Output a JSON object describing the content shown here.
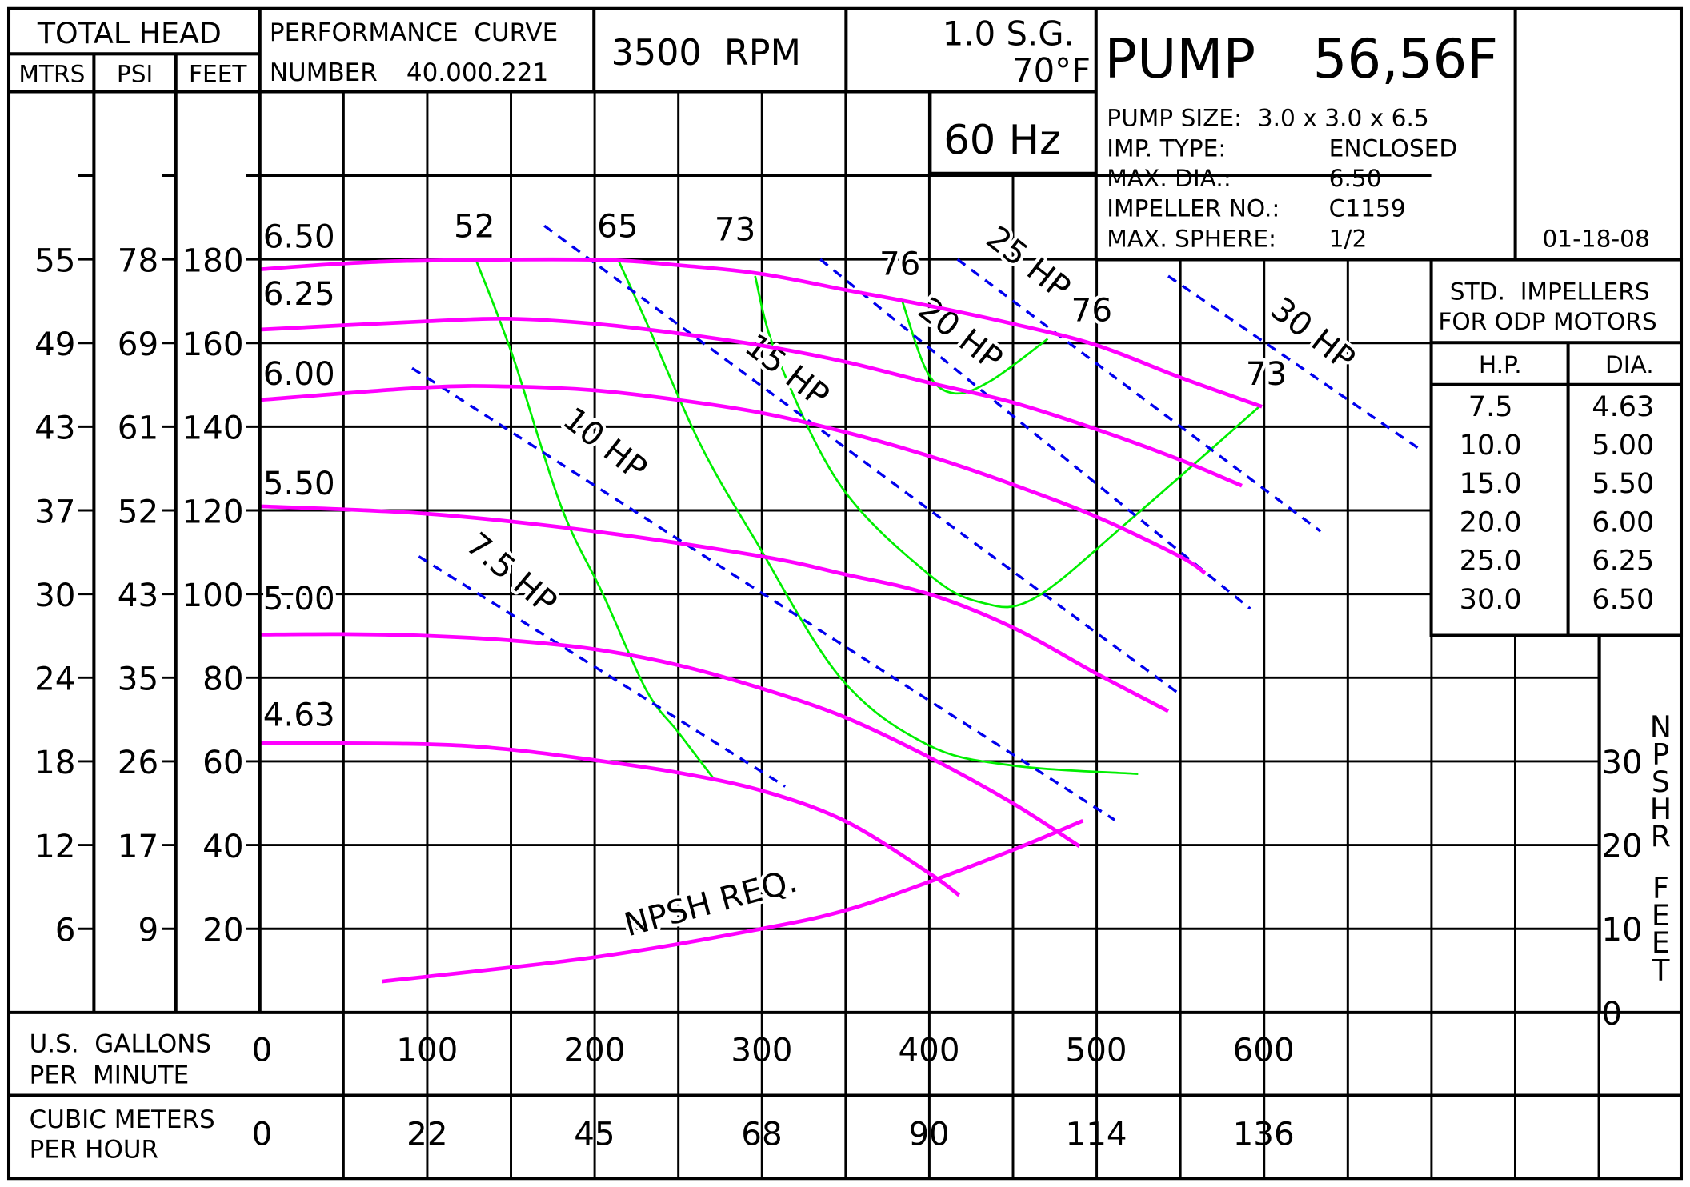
{
  "header": {
    "total_head": "TOTAL HEAD",
    "col_mtrs": "MTRS",
    "col_psi": "PSI",
    "col_feet": "FEET",
    "perf_curve": "PERFORMANCE  CURVE",
    "number_label": "NUMBER",
    "number_value": "40.000.221",
    "rpm": "3500  RPM",
    "sg": "1.0 S.G.",
    "temp": "70°F",
    "hz": "60 Hz",
    "pump_title": "PUMP",
    "pump_model": "56,56F",
    "specs": [
      {
        "label": "PUMP SIZE:",
        "value": "3.0 x 3.0 x 6.5"
      },
      {
        "label": "IMP. TYPE:",
        "value": "ENCLOSED"
      },
      {
        "label": "MAX. DIA.:",
        "value": "6.50"
      },
      {
        "label": "IMPELLER NO.:",
        "value": "C1159"
      },
      {
        "label": "MAX. SPHERE:",
        "value": "1/2"
      }
    ],
    "date": "01-18-08"
  },
  "std_impellers": {
    "title1": "STD.  IMPELLERS",
    "title2": "FOR ODP MOTORS",
    "hp_header": "H.P.",
    "dia_header": "DIA.",
    "rows": [
      {
        "hp": "7.5",
        "dia": "4.63"
      },
      {
        "hp": "10.0",
        "dia": "5.00"
      },
      {
        "hp": "15.0",
        "dia": "5.50"
      },
      {
        "hp": "20.0",
        "dia": "6.00"
      },
      {
        "hp": "25.0",
        "dia": "6.25"
      },
      {
        "hp": "30.0",
        "dia": "6.50"
      }
    ]
  },
  "colors": {
    "head_curve": "#ff00ff",
    "efficiency": "#00ee00",
    "hp_line": "#0000ee",
    "npsh": "#ff00ff"
  },
  "chart_data": {
    "type": "line",
    "grid": true,
    "xlabel": "U.S.  GALLONS PER  MINUTE",
    "x2label": "CUBIC METERS PER HOUR",
    "xlim": [
      0,
      800
    ],
    "xticks": [
      "0",
      "100",
      "200",
      "300",
      "400",
      "500",
      "600"
    ],
    "x2ticks": [
      "0",
      "22",
      "45",
      "68",
      "90",
      "114",
      "136"
    ],
    "ylim_feet": [
      0,
      200
    ],
    "feet_ticks": [
      "180",
      "160",
      "140",
      "120",
      "100",
      "80",
      "60",
      "40",
      "20"
    ],
    "psi_ticks": [
      "78",
      "69",
      "61",
      "52",
      "43",
      "35",
      "26",
      "17",
      "9"
    ],
    "mtrs_ticks": [
      "55",
      "49",
      "43",
      "37",
      "30",
      "24",
      "18",
      "12",
      "6"
    ],
    "npsh_axis_label": "NPSHR FEET",
    "npsh_ticks": [
      "30",
      "20",
      "10",
      "0"
    ],
    "head_curves": [
      {
        "name": "6.50",
        "points": [
          [
            0,
            177.6
          ],
          [
            50,
            179
          ],
          [
            100,
            179.7
          ],
          [
            200,
            179.9
          ],
          [
            250,
            178.6
          ],
          [
            300,
            176.5
          ],
          [
            350,
            172.7
          ],
          [
            400,
            168.9
          ],
          [
            450,
            164.6
          ],
          [
            500,
            159.5
          ],
          [
            550,
            151.8
          ],
          [
            599,
            144.8
          ]
        ]
      },
      {
        "name": "6.25",
        "points": [
          [
            0,
            163.2
          ],
          [
            100,
            165.2
          ],
          [
            150,
            165.8
          ],
          [
            200,
            164.6
          ],
          [
            250,
            162.3
          ],
          [
            300,
            159.4
          ],
          [
            350,
            155.5
          ],
          [
            400,
            150.5
          ],
          [
            450,
            145.8
          ],
          [
            500,
            139.4
          ],
          [
            550,
            132.1
          ],
          [
            587,
            125.9
          ]
        ]
      },
      {
        "name": "6.00",
        "points": [
          [
            0,
            146.4
          ],
          [
            100,
            149.4
          ],
          [
            150,
            149.6
          ],
          [
            200,
            148.7
          ],
          [
            250,
            146.4
          ],
          [
            300,
            143.3
          ],
          [
            350,
            138.7
          ],
          [
            400,
            133
          ],
          [
            450,
            126.2
          ],
          [
            500,
            118.5
          ],
          [
            550,
            109
          ],
          [
            565,
            105
          ]
        ]
      },
      {
        "name": "5.50",
        "points": [
          [
            0,
            121
          ],
          [
            100,
            119.2
          ],
          [
            200,
            115
          ],
          [
            300,
            109
          ],
          [
            350,
            104.7
          ],
          [
            400,
            100
          ],
          [
            450,
            92
          ],
          [
            500,
            81
          ],
          [
            543,
            72
          ]
        ]
      },
      {
        "name": "5.00",
        "points": [
          [
            0,
            90.3
          ],
          [
            50,
            90.4
          ],
          [
            100,
            90
          ],
          [
            150,
            88.9
          ],
          [
            200,
            86.8
          ],
          [
            250,
            83
          ],
          [
            300,
            77.4
          ],
          [
            350,
            70.5
          ],
          [
            400,
            61
          ],
          [
            450,
            50
          ],
          [
            490,
            39.7
          ]
        ]
      },
      {
        "name": "4.63",
        "points": [
          [
            0,
            64.4
          ],
          [
            100,
            64.1
          ],
          [
            150,
            62.8
          ],
          [
            200,
            60.3
          ],
          [
            250,
            57.3
          ],
          [
            300,
            53
          ],
          [
            350,
            45.7
          ],
          [
            400,
            33.3
          ],
          [
            418,
            28
          ]
        ]
      }
    ],
    "efficiency_curves": [
      {
        "labels": [
          "52"
        ],
        "points": [
          [
            129,
            180
          ],
          [
            151,
            157
          ],
          [
            180,
            121
          ],
          [
            205,
            100
          ],
          [
            231,
            77
          ],
          [
            250,
            67
          ],
          [
            271,
            56
          ]
        ]
      },
      {
        "labels": [
          "65"
        ],
        "points": [
          [
            214,
            180
          ],
          [
            231,
            165
          ],
          [
            263,
            136
          ],
          [
            296,
            113
          ],
          [
            347,
            80
          ],
          [
            399,
            64
          ],
          [
            450,
            59
          ],
          [
            525,
            57
          ]
        ]
      },
      {
        "labels": [
          "73",
          "73"
        ],
        "points": [
          [
            296,
            176
          ],
          [
            309,
            157
          ],
          [
            347,
            126
          ],
          [
            399,
            105
          ],
          [
            431,
            98
          ],
          [
            463,
            99
          ],
          [
            521,
            118
          ],
          [
            598,
            145
          ]
        ]
      },
      {
        "labels": [
          "76",
          "76"
        ],
        "points": [
          [
            384,
            170
          ],
          [
            399,
            153
          ],
          [
            415,
            148
          ],
          [
            437,
            151
          ],
          [
            471,
            161
          ]
        ]
      }
    ],
    "hp_lines": [
      {
        "name": "7.5 HP",
        "points": [
          [
            95,
            109
          ],
          [
            314,
            54
          ]
        ]
      },
      {
        "name": "10 HP",
        "points": [
          [
            91,
            154
          ],
          [
            511,
            46
          ]
        ]
      },
      {
        "name": "15 HP",
        "points": [
          [
            170,
            188
          ],
          [
            550,
            76
          ]
        ]
      },
      {
        "name": "20 HP",
        "points": [
          [
            335,
            180
          ],
          [
            592,
            96.5
          ]
        ]
      },
      {
        "name": "25 HP",
        "points": [
          [
            417,
            180
          ],
          [
            634,
            115
          ]
        ]
      },
      {
        "name": "30 HP",
        "points": [
          [
            543,
            176
          ],
          [
            692,
            135
          ]
        ]
      }
    ],
    "npsh_curve": {
      "name": "NPSH REQ.",
      "points": [
        [
          73,
          3.7
        ],
        [
          200,
          6.6
        ],
        [
          300,
          10
        ],
        [
          350,
          12.2
        ],
        [
          400,
          15.6
        ],
        [
          450,
          19.4
        ],
        [
          492,
          22.9
        ]
      ]
    }
  }
}
